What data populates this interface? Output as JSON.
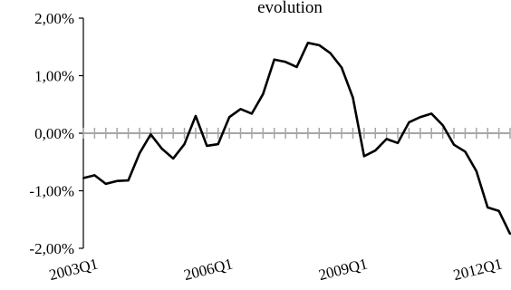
{
  "chart_data": {
    "type": "line",
    "title": "evolution",
    "xlabel": "",
    "ylabel": "",
    "ylim": [
      -0.02,
      0.02
    ],
    "yticks": [
      -0.02,
      -0.01,
      0,
      0.01,
      0.02
    ],
    "ytick_labels": [
      "-2,00%",
      "-1,00%",
      "0,00%",
      "1,00%",
      "2,00%"
    ],
    "xtick_labels": [
      "2003Q1",
      "2006Q1",
      "2009Q1",
      "2012Q1"
    ],
    "xtick_positions": [
      0,
      12,
      24,
      36
    ],
    "grid": false,
    "legend": "none",
    "colors": {
      "series": "#000000",
      "zero_line": "#a6a6a6",
      "axis": "#000000"
    },
    "series": [
      {
        "values": [
          -0.0078,
          -0.0073,
          -0.0088,
          -0.0083,
          -0.0082,
          -0.0035,
          -0.0002,
          -0.0027,
          -0.0044,
          -0.0019,
          0.003,
          -0.0022,
          -0.0019,
          0.0028,
          0.0042,
          0.0034,
          0.0068,
          0.0128,
          0.0124,
          0.0115,
          0.0157,
          0.0153,
          0.0139,
          0.0114,
          0.0062,
          -0.004,
          -0.003,
          -0.001,
          -0.0017,
          0.0019,
          0.0028,
          0.0034,
          0.0014,
          -0.002,
          -0.0032,
          -0.0066,
          -0.0129,
          -0.0135,
          -0.0175
        ]
      }
    ]
  }
}
